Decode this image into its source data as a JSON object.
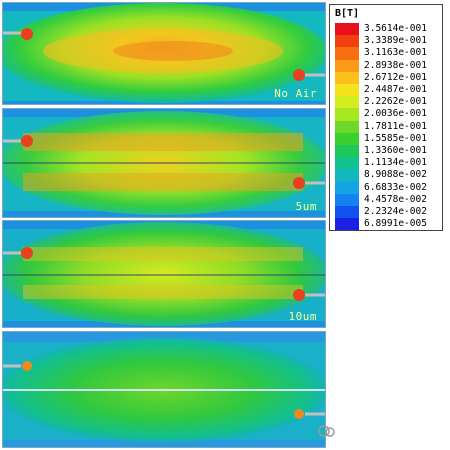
{
  "legend": {
    "title": "B[T]",
    "entries": [
      {
        "value": "3.5614e-001",
        "color": "#e8101a"
      },
      {
        "value": "3.3389e-001",
        "color": "#f04010"
      },
      {
        "value": "3.1163e-001",
        "color": "#f67010"
      },
      {
        "value": "2.8938e-001",
        "color": "#fb9a18"
      },
      {
        "value": "2.6712e-001",
        "color": "#fcc01c"
      },
      {
        "value": "2.4487e-001",
        "color": "#f4e21c"
      },
      {
        "value": "2.2262e-001",
        "color": "#d2ee1e"
      },
      {
        "value": "2.0036e-001",
        "color": "#a6e820"
      },
      {
        "value": "1.7811e-001",
        "color": "#6ed82a"
      },
      {
        "value": "1.5585e-001",
        "color": "#3ccf32"
      },
      {
        "value": "1.3360e-001",
        "color": "#1cc85a"
      },
      {
        "value": "1.1134e-001",
        "color": "#10c28e"
      },
      {
        "value": "8.9088e-002",
        "color": "#12b8bc"
      },
      {
        "value": "6.6833e-002",
        "color": "#14a4e2"
      },
      {
        "value": "4.4578e-002",
        "color": "#1482f2"
      },
      {
        "value": "2.2324e-002",
        "color": "#1452f0"
      },
      {
        "value": "6.8991e-005",
        "color": "#1a20e4"
      }
    ]
  },
  "panels": [
    {
      "label": "No Air",
      "field_level": 0.8
    },
    {
      "label": "5um",
      "field_level": 0.7
    },
    {
      "label": "10um",
      "field_level": 0.6
    },
    {
      "label": "",
      "field_level": 0.4
    }
  ]
}
